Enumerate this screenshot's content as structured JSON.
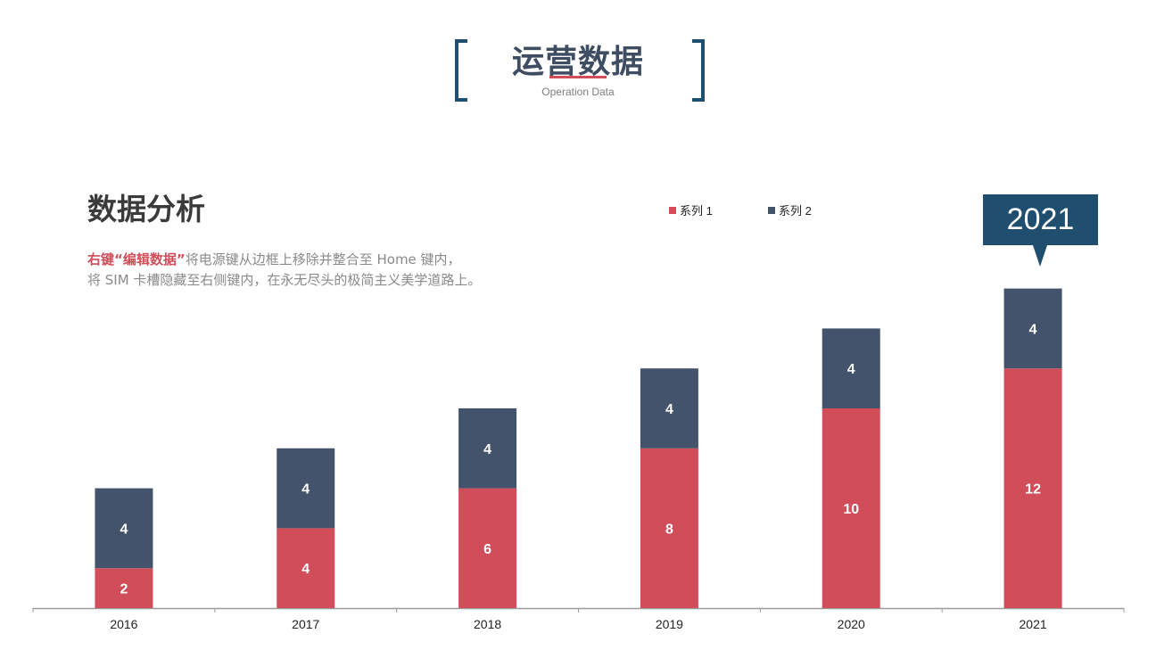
{
  "header": {
    "title": "运营数据",
    "subtitle": "Operation Data"
  },
  "section": {
    "heading": "数据分析",
    "desc_highlight": "右键“编辑数据”",
    "desc_rest": "将电源键从边框上移除并整合至 Home 键内，",
    "desc_line2": "将 SIM 卡槽隐藏至右侧键内，在永无尽头的极简主义美学道路上。"
  },
  "callout": {
    "text": "2021"
  },
  "colors": {
    "series1": "#d14d5a",
    "series2": "#43536b",
    "accent": "#1f4e6e",
    "axis": "#9a9a9a"
  },
  "chart_data": {
    "type": "bar",
    "stacked": true,
    "categories": [
      "2016",
      "2017",
      "2018",
      "2019",
      "2020",
      "2021"
    ],
    "series": [
      {
        "name": "系列 1",
        "values": [
          2,
          4,
          6,
          8,
          10,
          12
        ]
      },
      {
        "name": "系列 2",
        "values": [
          4,
          4,
          4,
          4,
          4,
          4
        ]
      }
    ],
    "ylim": [
      0,
      16
    ],
    "grid": false,
    "legend": "top-right",
    "data_labels": true
  }
}
